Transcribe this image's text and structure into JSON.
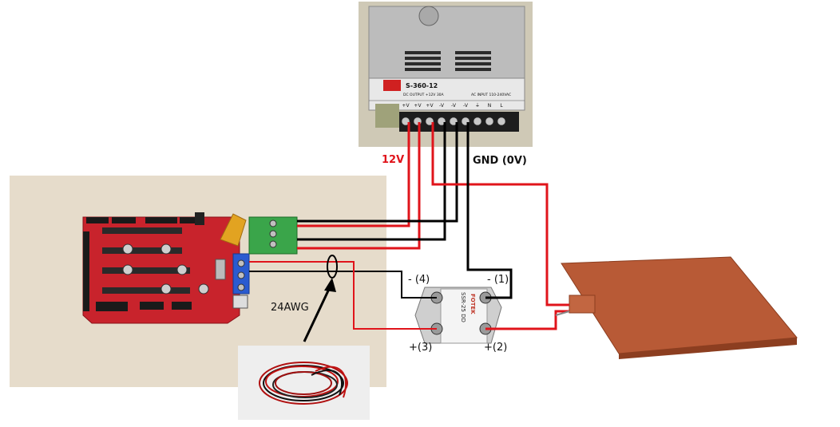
{
  "labels": {
    "v12": "12V",
    "gnd": "GND (0V)",
    "awg": "24AWG",
    "ssr_minus4": "- (4)",
    "ssr_minus1": "- (1)",
    "ssr_plus3": "+(3)",
    "ssr_plus2": "+(2)"
  },
  "psu": {
    "model": "S-360-12",
    "output": "DC OUTPUT +12V 30A",
    "input": "AC INPUT 110-240VAC",
    "terminals": [
      "+V",
      "+V",
      "+V",
      "-V",
      "-V",
      "-V",
      "⏚",
      "N",
      "L"
    ]
  },
  "ssr": {
    "model": "SSR-25 DD",
    "brand": "FOTEK"
  },
  "colors": {
    "wire_positive": "#e0141b",
    "wire_ground": "#000000",
    "label_12v": "#e0141b",
    "board_red": "#c8232c",
    "heatbed": "#b85a36",
    "terminal_green": "#3aa54a"
  }
}
